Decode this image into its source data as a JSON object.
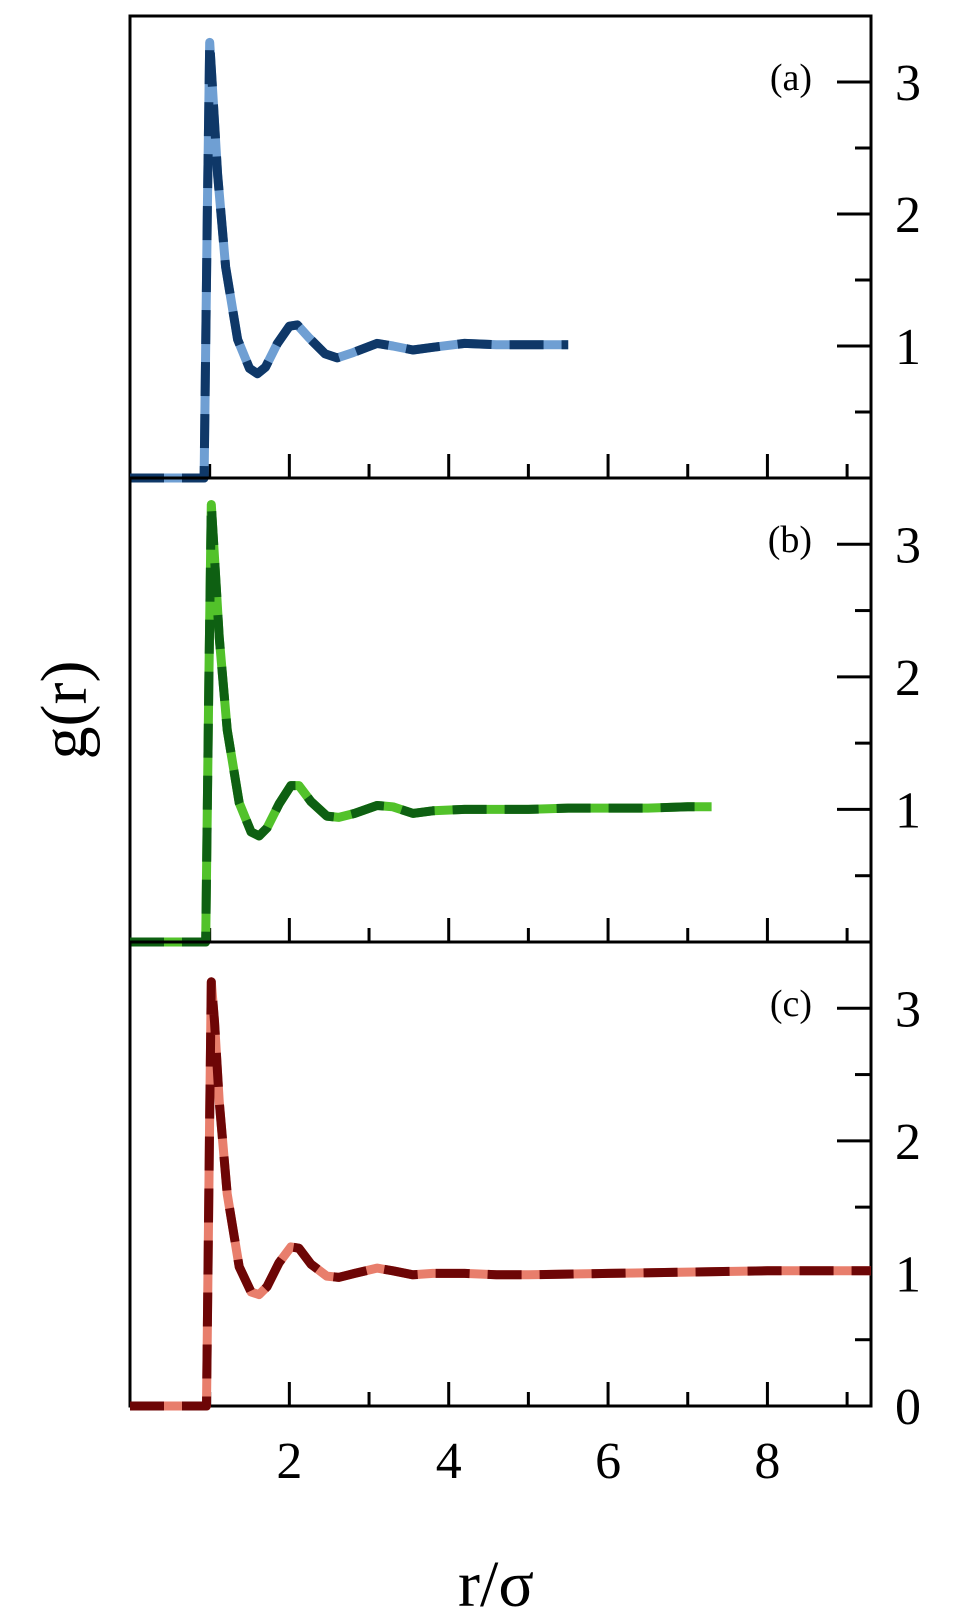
{
  "chart_data": [
    {
      "type": "line",
      "panel_label": "(a)",
      "xlim": [
        0,
        9.3
      ],
      "ylim": [
        0,
        3.5
      ],
      "ytick_labels": [
        "1",
        "2",
        "3"
      ],
      "colors": {
        "solid": "#6f9fd3",
        "dash": "#0f3868"
      },
      "x": [
        0,
        0.93,
        0.97,
        1.0,
        1.04,
        1.1,
        1.2,
        1.35,
        1.5,
        1.6,
        1.7,
        1.85,
        2.0,
        2.1,
        2.25,
        2.45,
        2.6,
        2.8,
        3.1,
        3.3,
        3.55,
        3.8,
        4.2,
        4.6,
        5.0,
        5.5
      ],
      "y": [
        0,
        0,
        2.0,
        3.3,
        2.9,
        2.3,
        1.6,
        1.05,
        0.83,
        0.79,
        0.84,
        1.02,
        1.15,
        1.16,
        1.06,
        0.94,
        0.91,
        0.95,
        1.02,
        1.0,
        0.97,
        0.99,
        1.02,
        1.01,
        1.01,
        1.01
      ]
    },
    {
      "type": "line",
      "panel_label": "(b)",
      "xlim": [
        0,
        9.3
      ],
      "ylim": [
        0,
        3.5
      ],
      "ytick_labels": [
        "1",
        "2",
        "3"
      ],
      "colors": {
        "solid": "#52c22a",
        "dash": "#0e6012"
      },
      "x": [
        0,
        0.95,
        0.99,
        1.02,
        1.06,
        1.12,
        1.22,
        1.37,
        1.52,
        1.62,
        1.72,
        1.87,
        2.02,
        2.12,
        2.27,
        2.47,
        2.62,
        2.82,
        3.1,
        3.3,
        3.55,
        3.8,
        4.2,
        4.6,
        5.0,
        5.5,
        6.0,
        6.5,
        7.0,
        7.3
      ],
      "y": [
        0,
        0,
        2.0,
        3.3,
        2.9,
        2.3,
        1.6,
        1.05,
        0.83,
        0.8,
        0.86,
        1.04,
        1.18,
        1.18,
        1.06,
        0.95,
        0.94,
        0.97,
        1.03,
        1.02,
        0.97,
        0.99,
        1.0,
        1.0,
        1.0,
        1.01,
        1.01,
        1.01,
        1.02,
        1.02
      ]
    },
    {
      "type": "line",
      "panel_label": "(c)",
      "xlim": [
        0,
        9.3
      ],
      "ylim": [
        0,
        3.5
      ],
      "ytick_labels": [
        "0",
        "1",
        "2",
        "3"
      ],
      "xtick_labels": [
        "2",
        "4",
        "6",
        "8"
      ],
      "xlabel": "r/σ",
      "ylabel": "g(r)",
      "colors": {
        "solid": "#e87e6c",
        "dash": "#6d0606"
      },
      "x": [
        0,
        0.96,
        1.0,
        1.02,
        1.06,
        1.12,
        1.22,
        1.37,
        1.52,
        1.62,
        1.72,
        1.87,
        2.02,
        2.12,
        2.27,
        2.47,
        2.62,
        2.82,
        3.1,
        3.3,
        3.55,
        3.8,
        4.2,
        4.6,
        5.0,
        6.0,
        7.0,
        8.0,
        9.3
      ],
      "y": [
        0,
        0,
        2.2,
        3.2,
        2.9,
        2.3,
        1.6,
        1.05,
        0.86,
        0.84,
        0.9,
        1.08,
        1.2,
        1.19,
        1.07,
        0.98,
        0.97,
        1.0,
        1.04,
        1.02,
        0.99,
        1.0,
        1.0,
        0.99,
        0.99,
        1.0,
        1.01,
        1.02,
        1.02
      ]
    }
  ]
}
